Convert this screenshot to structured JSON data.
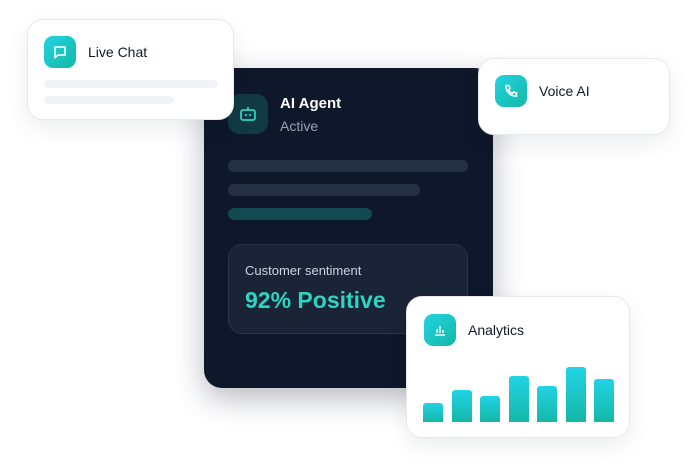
{
  "live_chat": {
    "title": "Live Chat",
    "icon": "chat-bubble-icon"
  },
  "ai_agent": {
    "title": "AI Agent",
    "status": "Active",
    "icon": "robot-icon",
    "sentiment": {
      "label": "Customer sentiment",
      "value": "92% Positive"
    }
  },
  "voice_ai": {
    "title": "Voice AI",
    "icon": "phone-icon"
  },
  "analytics": {
    "title": "Analytics",
    "icon": "bar-chart-icon",
    "bar_levels_percent": [
      35,
      59,
      48,
      83,
      65,
      100,
      78
    ]
  },
  "colors": {
    "accent": "#2dd4bf",
    "dark_card": "#0f172a",
    "icon_gradient": [
      "#22d3e0",
      "#14b8a6"
    ]
  }
}
